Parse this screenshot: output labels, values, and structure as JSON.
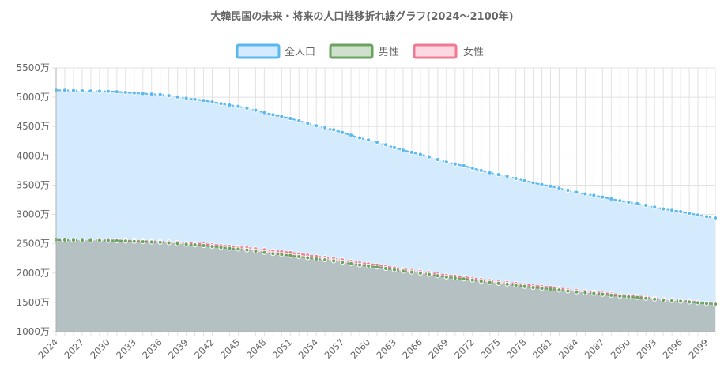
{
  "chart_data": {
    "type": "area",
    "title": "大韓民国の未来・将来の人口推移折れ線グラフ(2024～2100年)",
    "unit_suffix": "万",
    "ylim": [
      1000,
      5500
    ],
    "ystep": 500,
    "yticks": [
      "5500万",
      "5000万",
      "4500万",
      "4000万",
      "3500万",
      "3000万",
      "2500万",
      "2000万",
      "1500万",
      "1000万"
    ],
    "x_start": 2024,
    "x_end": 2100,
    "xtick_labels": [
      "2024",
      "2027",
      "2030",
      "2033",
      "2036",
      "2039",
      "2042",
      "2045",
      "2048",
      "2051",
      "2054",
      "2057",
      "2060",
      "2063",
      "2066",
      "2069",
      "2072",
      "2075",
      "2078",
      "2081",
      "2084",
      "2087",
      "2090",
      "2093",
      "2096",
      "2099"
    ],
    "legend_position": "top",
    "grid": true,
    "series": [
      {
        "name": "全人口",
        "color": "#5bb7f0",
        "fill": "#d3ebfc",
        "anchors": [
          [
            2024,
            5120
          ],
          [
            2030,
            5100
          ],
          [
            2036,
            5045
          ],
          [
            2040,
            4965
          ],
          [
            2045,
            4845
          ],
          [
            2050,
            4670
          ],
          [
            2055,
            4480
          ],
          [
            2060,
            4270
          ],
          [
            2065,
            4060
          ],
          [
            2070,
            3860
          ],
          [
            2075,
            3680
          ],
          [
            2080,
            3510
          ],
          [
            2085,
            3350
          ],
          [
            2090,
            3210
          ],
          [
            2095,
            3070
          ],
          [
            2100,
            2940
          ]
        ]
      },
      {
        "name": "男性",
        "color": "#6aa35e",
        "fill": "#cfe0cc",
        "anchors": [
          [
            2024,
            2565
          ],
          [
            2030,
            2555
          ],
          [
            2036,
            2525
          ],
          [
            2040,
            2480
          ],
          [
            2045,
            2410
          ],
          [
            2050,
            2315
          ],
          [
            2055,
            2225
          ],
          [
            2060,
            2120
          ],
          [
            2065,
            2015
          ],
          [
            2070,
            1915
          ],
          [
            2075,
            1825
          ],
          [
            2080,
            1740
          ],
          [
            2085,
            1665
          ],
          [
            2090,
            1595
          ],
          [
            2095,
            1530
          ],
          [
            2100,
            1470
          ]
        ]
      },
      {
        "name": "女性",
        "color": "#f07a93",
        "fill": "#fcd9e0",
        "anchors": [
          [
            2024,
            2565
          ],
          [
            2030,
            2560
          ],
          [
            2036,
            2540
          ],
          [
            2040,
            2505
          ],
          [
            2045,
            2445
          ],
          [
            2050,
            2365
          ],
          [
            2055,
            2265
          ],
          [
            2060,
            2155
          ],
          [
            2065,
            2045
          ],
          [
            2070,
            1945
          ],
          [
            2075,
            1855
          ],
          [
            2080,
            1770
          ],
          [
            2085,
            1690
          ],
          [
            2090,
            1615
          ],
          [
            2095,
            1545
          ],
          [
            2100,
            1475
          ]
        ]
      }
    ]
  }
}
